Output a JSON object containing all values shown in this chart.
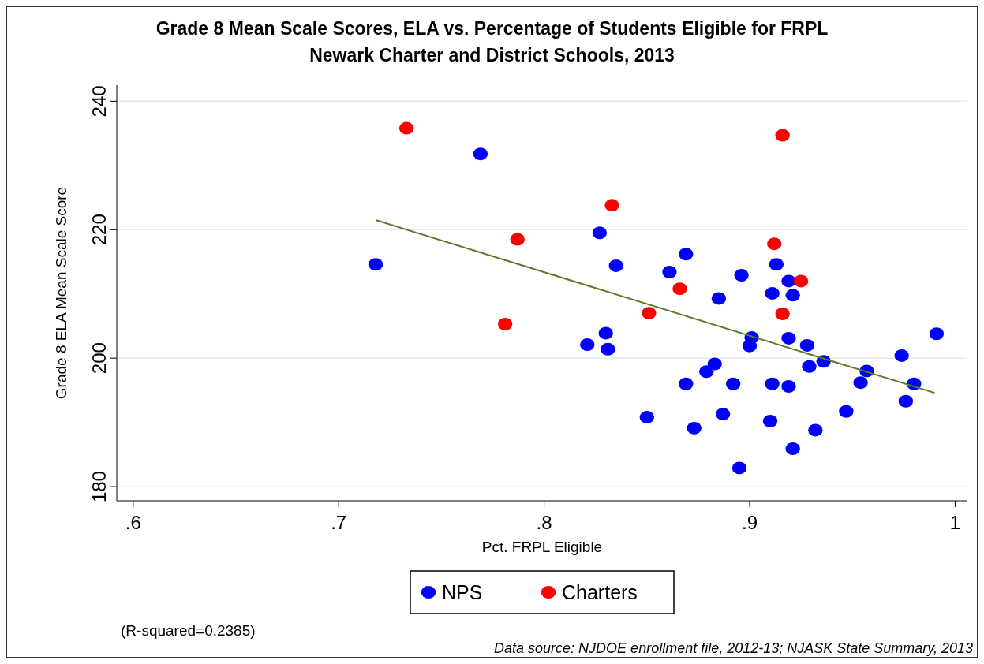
{
  "chart_data": {
    "type": "scatter",
    "title": "Grade 8 Mean Scale Scores, ELA vs. Percentage of Students Eligible for FRPL",
    "subtitle": "Newark Charter and District Schools, 2013",
    "xlabel": "Pct. FRPL Eligible",
    "ylabel": "Grade 8 ELA Mean Scale Score",
    "xlim": [
      0.592,
      1.006
    ],
    "ylim": [
      177.8,
      242.5
    ],
    "xticks": [
      {
        "value": 0.6,
        "label": ".6"
      },
      {
        "value": 0.7,
        "label": ".7"
      },
      {
        "value": 0.8,
        "label": ".8"
      },
      {
        "value": 0.9,
        "label": ".9"
      },
      1
    ],
    "yticks": [
      180,
      200,
      220,
      240
    ],
    "grid": "y",
    "legend": "bottom",
    "marker": "circle",
    "series": [
      {
        "name": "NPS",
        "color": "#0000ff",
        "x": [
          0.718,
          0.769,
          0.827,
          0.835,
          0.861,
          0.869,
          0.896,
          0.913,
          0.919,
          0.911,
          0.921,
          0.885,
          0.83,
          0.821,
          0.831,
          0.901,
          0.9,
          0.919,
          0.928,
          0.991,
          0.974,
          0.936,
          0.929,
          0.957,
          0.883,
          0.879,
          0.869,
          0.892,
          0.911,
          0.919,
          0.954,
          0.98,
          0.976,
          0.947,
          0.85,
          0.887,
          0.91,
          0.873,
          0.932,
          0.921,
          0.895
        ],
        "values": [
          214.6,
          231.8,
          219.5,
          214.4,
          213.4,
          216.2,
          212.9,
          214.6,
          212.0,
          210.1,
          209.8,
          209.3,
          203.9,
          202.1,
          201.4,
          203.2,
          201.9,
          203.1,
          202.0,
          203.8,
          200.4,
          199.5,
          198.7,
          198.0,
          199.1,
          197.9,
          196.0,
          196.0,
          196.0,
          195.6,
          196.2,
          196.0,
          193.3,
          191.7,
          190.8,
          191.3,
          190.2,
          189.1,
          188.8,
          185.9,
          182.9
        ]
      },
      {
        "name": "Charters",
        "color": "#ff0000",
        "x": [
          0.733,
          0.787,
          0.781,
          0.833,
          0.912,
          0.925,
          0.866,
          0.851,
          0.916,
          0.916
        ],
        "values": [
          235.8,
          218.5,
          205.3,
          223.8,
          217.8,
          212.0,
          210.8,
          207.0,
          206.9,
          234.7
        ]
      },
      {
        "type": "line",
        "color": "#5a7a2a",
        "marker": "none",
        "x": [
          0.718,
          0.99
        ],
        "values": [
          221.5,
          194.6
        ]
      }
    ],
    "annotations": [
      "(R-squared=0.2385)",
      "Data source: NJDOE enrollment file, 2012-13; NJASK State Summary, 2013"
    ]
  }
}
